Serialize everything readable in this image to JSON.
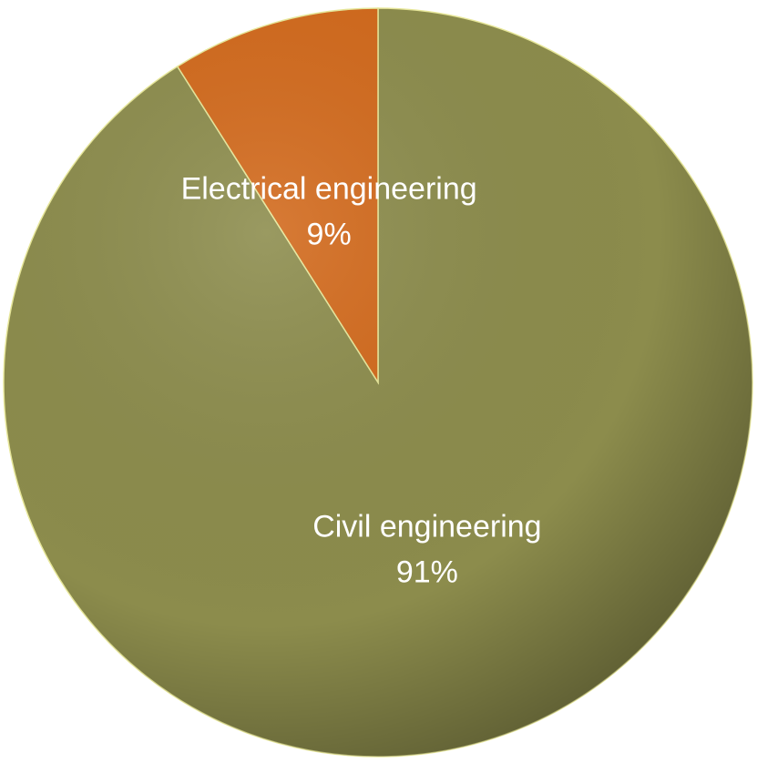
{
  "chart_data": {
    "type": "pie",
    "categories": [
      "Civil engineering",
      "Electrical engineering"
    ],
    "values": [
      91,
      9
    ],
    "value_labels": [
      "91%",
      "9%"
    ],
    "colors": [
      "#8c8c4c",
      "#d2691b"
    ]
  }
}
